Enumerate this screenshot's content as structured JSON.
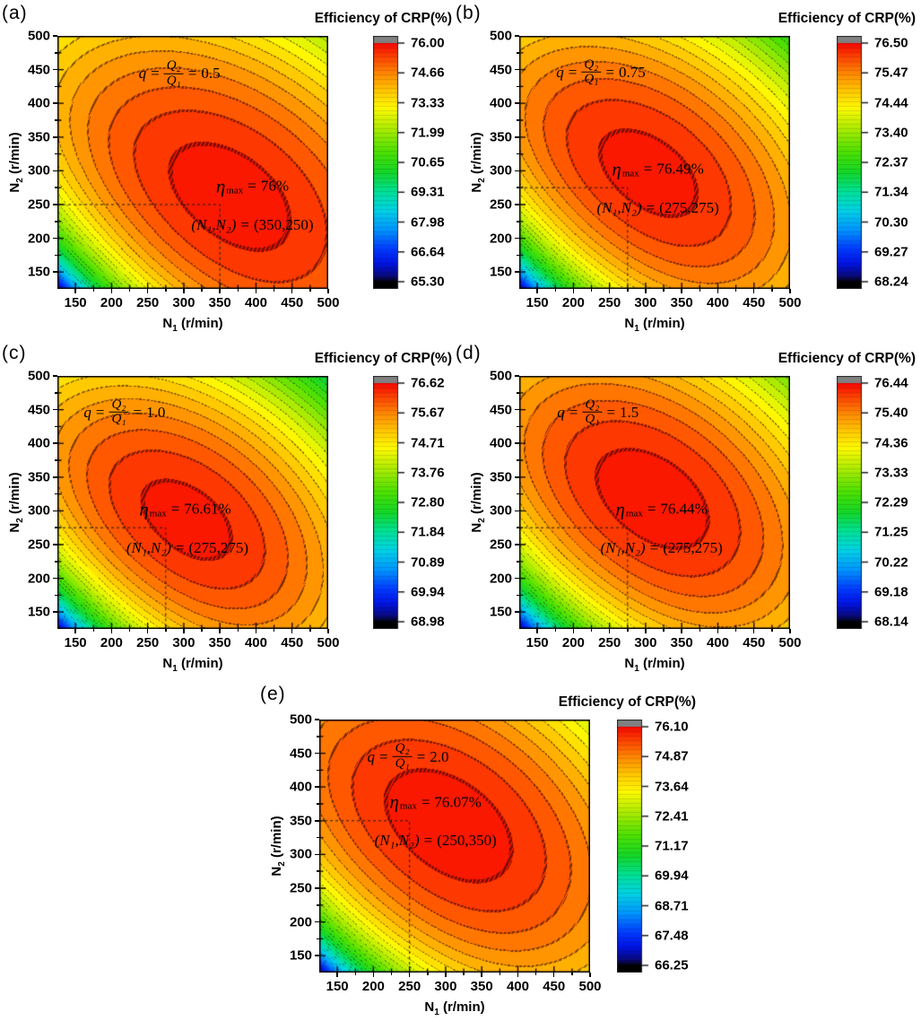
{
  "figure": {
    "background": "#ffffff"
  },
  "colors": {
    "overflow_cap": "#808080",
    "underflow_cap": "#000000",
    "peak_red": "#f80800",
    "contour_line": "#333333",
    "frame": "#000000"
  },
  "math": {
    "q_sym": "q",
    "eq": "=",
    "q_num": "Q₂",
    "q_den": "Q₁",
    "eta_sym": "η",
    "eta_sub": "max",
    "point_lhs": "(N₁,N₂)"
  },
  "axes": {
    "xlabel_main": "N",
    "xlabel_sub": "1",
    "xlabel_rest": " (r/min)",
    "ylabel_main": "N",
    "ylabel_sub": "2",
    "ylabel_rest": " (r/min)",
    "xticks": [
      "150",
      "200",
      "250",
      "300",
      "350",
      "400",
      "450",
      "500"
    ],
    "yticks": [
      "150",
      "200",
      "250",
      "300",
      "350",
      "400",
      "450",
      "500"
    ]
  },
  "panels": [
    {
      "letter": "(a)",
      "title": "Efficiency of CRP(%)",
      "q_value": "0.5",
      "eta_value": "76%",
      "point_value": "(350,250)",
      "max_n1": 350,
      "max_n2": 250,
      "zmin": 65.3,
      "zmax": 76.0,
      "colorbar_labels": [
        "76.00",
        "74.66",
        "73.33",
        "71.99",
        "70.65",
        "69.31",
        "67.98",
        "66.64",
        "65.30"
      ]
    },
    {
      "letter": "(b)",
      "title": "Efficiency of CRP(%)",
      "q_value": "0.75",
      "eta_value": "76.49%",
      "point_value": "(275,275)",
      "max_n1": 275,
      "max_n2": 275,
      "zmin": 68.24,
      "zmax": 76.5,
      "colorbar_labels": [
        "76.50",
        "75.47",
        "74.44",
        "73.40",
        "72.37",
        "71.34",
        "70.30",
        "69.27",
        "68.24"
      ]
    },
    {
      "letter": "(c)",
      "title": "Efficiency of CRP(%)",
      "q_value": "1.0",
      "eta_value": "76.61%",
      "point_value": "(275,275)",
      "max_n1": 275,
      "max_n2": 275,
      "zmin": 68.98,
      "zmax": 76.62,
      "colorbar_labels": [
        "76.62",
        "75.67",
        "74.71",
        "73.76",
        "72.80",
        "71.84",
        "70.89",
        "69.94",
        "68.98"
      ]
    },
    {
      "letter": "(d)",
      "title": "Efficiency of CRP(%)",
      "q_value": "1.5",
      "eta_value": "76.44%",
      "point_value": "(275,275)",
      "max_n1": 275,
      "max_n2": 275,
      "zmin": 68.14,
      "zmax": 76.44,
      "colorbar_labels": [
        "76.44",
        "75.40",
        "74.36",
        "73.33",
        "72.29",
        "71.25",
        "70.22",
        "69.18",
        "68.14"
      ]
    },
    {
      "letter": "(e)",
      "title": "Efficiency of CRP(%)",
      "q_value": "2.0",
      "eta_value": "76.07%",
      "point_value": "(250,350)",
      "max_n1": 250,
      "max_n2": 350,
      "zmin": 66.25,
      "zmax": 76.1,
      "colorbar_labels": [
        "76.10",
        "74.87",
        "73.64",
        "72.41",
        "71.17",
        "69.94",
        "68.71",
        "67.48",
        "66.25"
      ]
    }
  ],
  "chart_data": [
    {
      "type": "contour",
      "panel": "a",
      "title": "Efficiency of CRP(%)",
      "xlabel": "N1 (r/min)",
      "ylabel": "N2 (r/min)",
      "xlim": [
        125,
        500
      ],
      "ylim": [
        125,
        500
      ],
      "xticks": [
        150,
        200,
        250,
        300,
        350,
        400,
        450,
        500
      ],
      "yticks": [
        150,
        200,
        250,
        300,
        350,
        400,
        450,
        500
      ],
      "q_ratio": 0.5,
      "efficiency_max_percent": 76,
      "optimum_N1": 350,
      "optimum_N2": 250,
      "colorbar": {
        "min": 65.3,
        "max": 76.0,
        "tick_values": [
          76.0,
          74.66,
          73.33,
          71.99,
          70.65,
          69.31,
          67.98,
          66.64,
          65.3
        ]
      }
    },
    {
      "type": "contour",
      "panel": "b",
      "title": "Efficiency of CRP(%)",
      "xlabel": "N1 (r/min)",
      "ylabel": "N2 (r/min)",
      "xlim": [
        125,
        500
      ],
      "ylim": [
        125,
        500
      ],
      "xticks": [
        150,
        200,
        250,
        300,
        350,
        400,
        450,
        500
      ],
      "yticks": [
        150,
        200,
        250,
        300,
        350,
        400,
        450,
        500
      ],
      "q_ratio": 0.75,
      "efficiency_max_percent": 76.49,
      "optimum_N1": 275,
      "optimum_N2": 275,
      "colorbar": {
        "min": 68.24,
        "max": 76.5,
        "tick_values": [
          76.5,
          75.47,
          74.44,
          73.4,
          72.37,
          71.34,
          70.3,
          69.27,
          68.24
        ]
      }
    },
    {
      "type": "contour",
      "panel": "c",
      "title": "Efficiency of CRP(%)",
      "xlabel": "N1 (r/min)",
      "ylabel": "N2 (r/min)",
      "xlim": [
        125,
        500
      ],
      "ylim": [
        125,
        500
      ],
      "xticks": [
        150,
        200,
        250,
        300,
        350,
        400,
        450,
        500
      ],
      "yticks": [
        150,
        200,
        250,
        300,
        350,
        400,
        450,
        500
      ],
      "q_ratio": 1.0,
      "efficiency_max_percent": 76.61,
      "optimum_N1": 275,
      "optimum_N2": 275,
      "colorbar": {
        "min": 68.98,
        "max": 76.62,
        "tick_values": [
          76.62,
          75.67,
          74.71,
          73.76,
          72.8,
          71.84,
          70.89,
          69.94,
          68.98
        ]
      }
    },
    {
      "type": "contour",
      "panel": "d",
      "title": "Efficiency of CRP(%)",
      "xlabel": "N1 (r/min)",
      "ylabel": "N2 (r/min)",
      "xlim": [
        125,
        500
      ],
      "ylim": [
        125,
        500
      ],
      "xticks": [
        150,
        200,
        250,
        300,
        350,
        400,
        450,
        500
      ],
      "yticks": [
        150,
        200,
        250,
        300,
        350,
        400,
        450,
        500
      ],
      "q_ratio": 1.5,
      "efficiency_max_percent": 76.44,
      "optimum_N1": 275,
      "optimum_N2": 275,
      "colorbar": {
        "min": 68.14,
        "max": 76.44,
        "tick_values": [
          76.44,
          75.4,
          74.36,
          73.33,
          72.29,
          71.25,
          70.22,
          69.18,
          68.14
        ]
      }
    },
    {
      "type": "contour",
      "panel": "e",
      "title": "Efficiency of CRP(%)",
      "xlabel": "N1 (r/min)",
      "ylabel": "N2 (r/min)",
      "xlim": [
        125,
        500
      ],
      "ylim": [
        125,
        500
      ],
      "xticks": [
        150,
        200,
        250,
        300,
        350,
        400,
        450,
        500
      ],
      "yticks": [
        150,
        200,
        250,
        300,
        350,
        400,
        450,
        500
      ],
      "q_ratio": 2.0,
      "efficiency_max_percent": 76.07,
      "optimum_N1": 250,
      "optimum_N2": 350,
      "colorbar": {
        "min": 66.25,
        "max": 76.1,
        "tick_values": [
          76.1,
          74.87,
          73.64,
          72.41,
          71.17,
          69.94,
          68.71,
          67.48,
          66.25
        ]
      }
    }
  ]
}
